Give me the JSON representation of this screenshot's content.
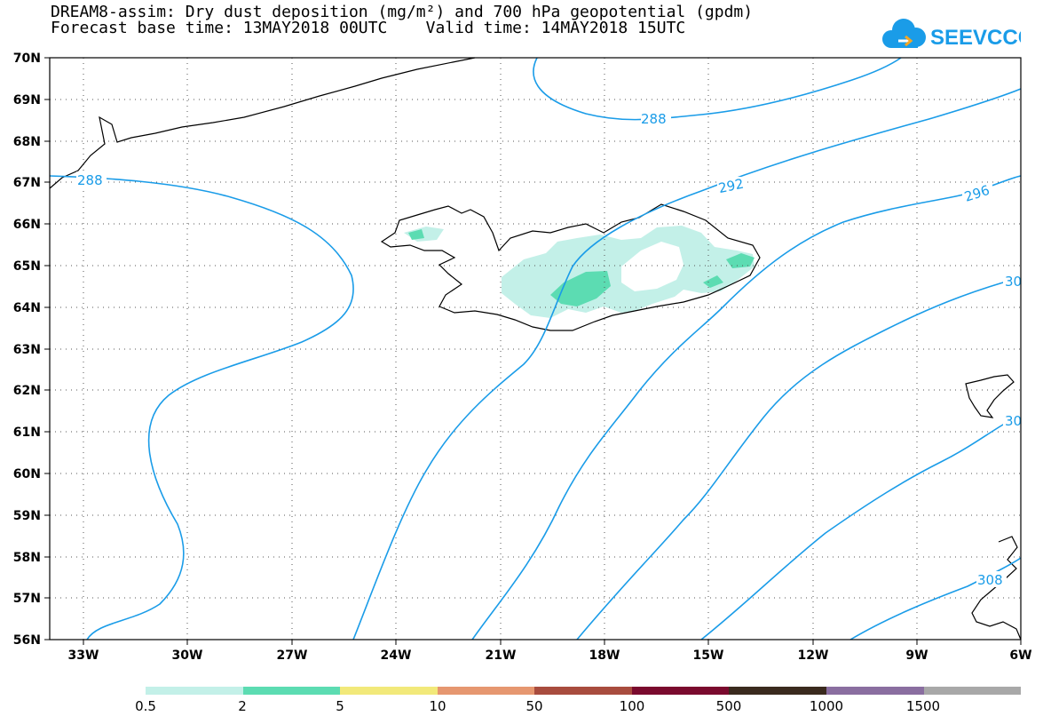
{
  "title": {
    "line1": "DREAM8-assim: Dry dust deposition (mg/m²) and 700 hPa geopotential (gpdm)",
    "line2": "Forecast base time: 13MAY2018 00UTC    Valid time: 14MAY2018 15UTC"
  },
  "logo": {
    "text": "SEEVCCC",
    "color": "#1a9ce8",
    "icon": "cloud-icon"
  },
  "map": {
    "lon_labels": [
      "33W",
      "30W",
      "27W",
      "24W",
      "21W",
      "18W",
      "15W",
      "12W",
      "9W",
      "6W"
    ],
    "lat_labels": [
      "70N",
      "69N",
      "68N",
      "67N",
      "66N",
      "65N",
      "64N",
      "63N",
      "62N",
      "61N",
      "60N",
      "59N",
      "58N",
      "57N",
      "56N"
    ],
    "contour_labels": [
      "288",
      "288",
      "292",
      "296",
      "30",
      "30",
      "308"
    ],
    "contour_color": "#1a9ce8"
  },
  "legend": {
    "labels": [
      "0.5",
      "2",
      "5",
      "10",
      "50",
      "100",
      "500",
      "1000",
      "1500"
    ],
    "colors": [
      "#c3f0e8",
      "#5cdcb2",
      "#f2e97a",
      "#e69770",
      "#a84c3e",
      "#7a0a2e",
      "#3a2a1e",
      "#8a6ea0",
      "#a8a8a8"
    ]
  }
}
